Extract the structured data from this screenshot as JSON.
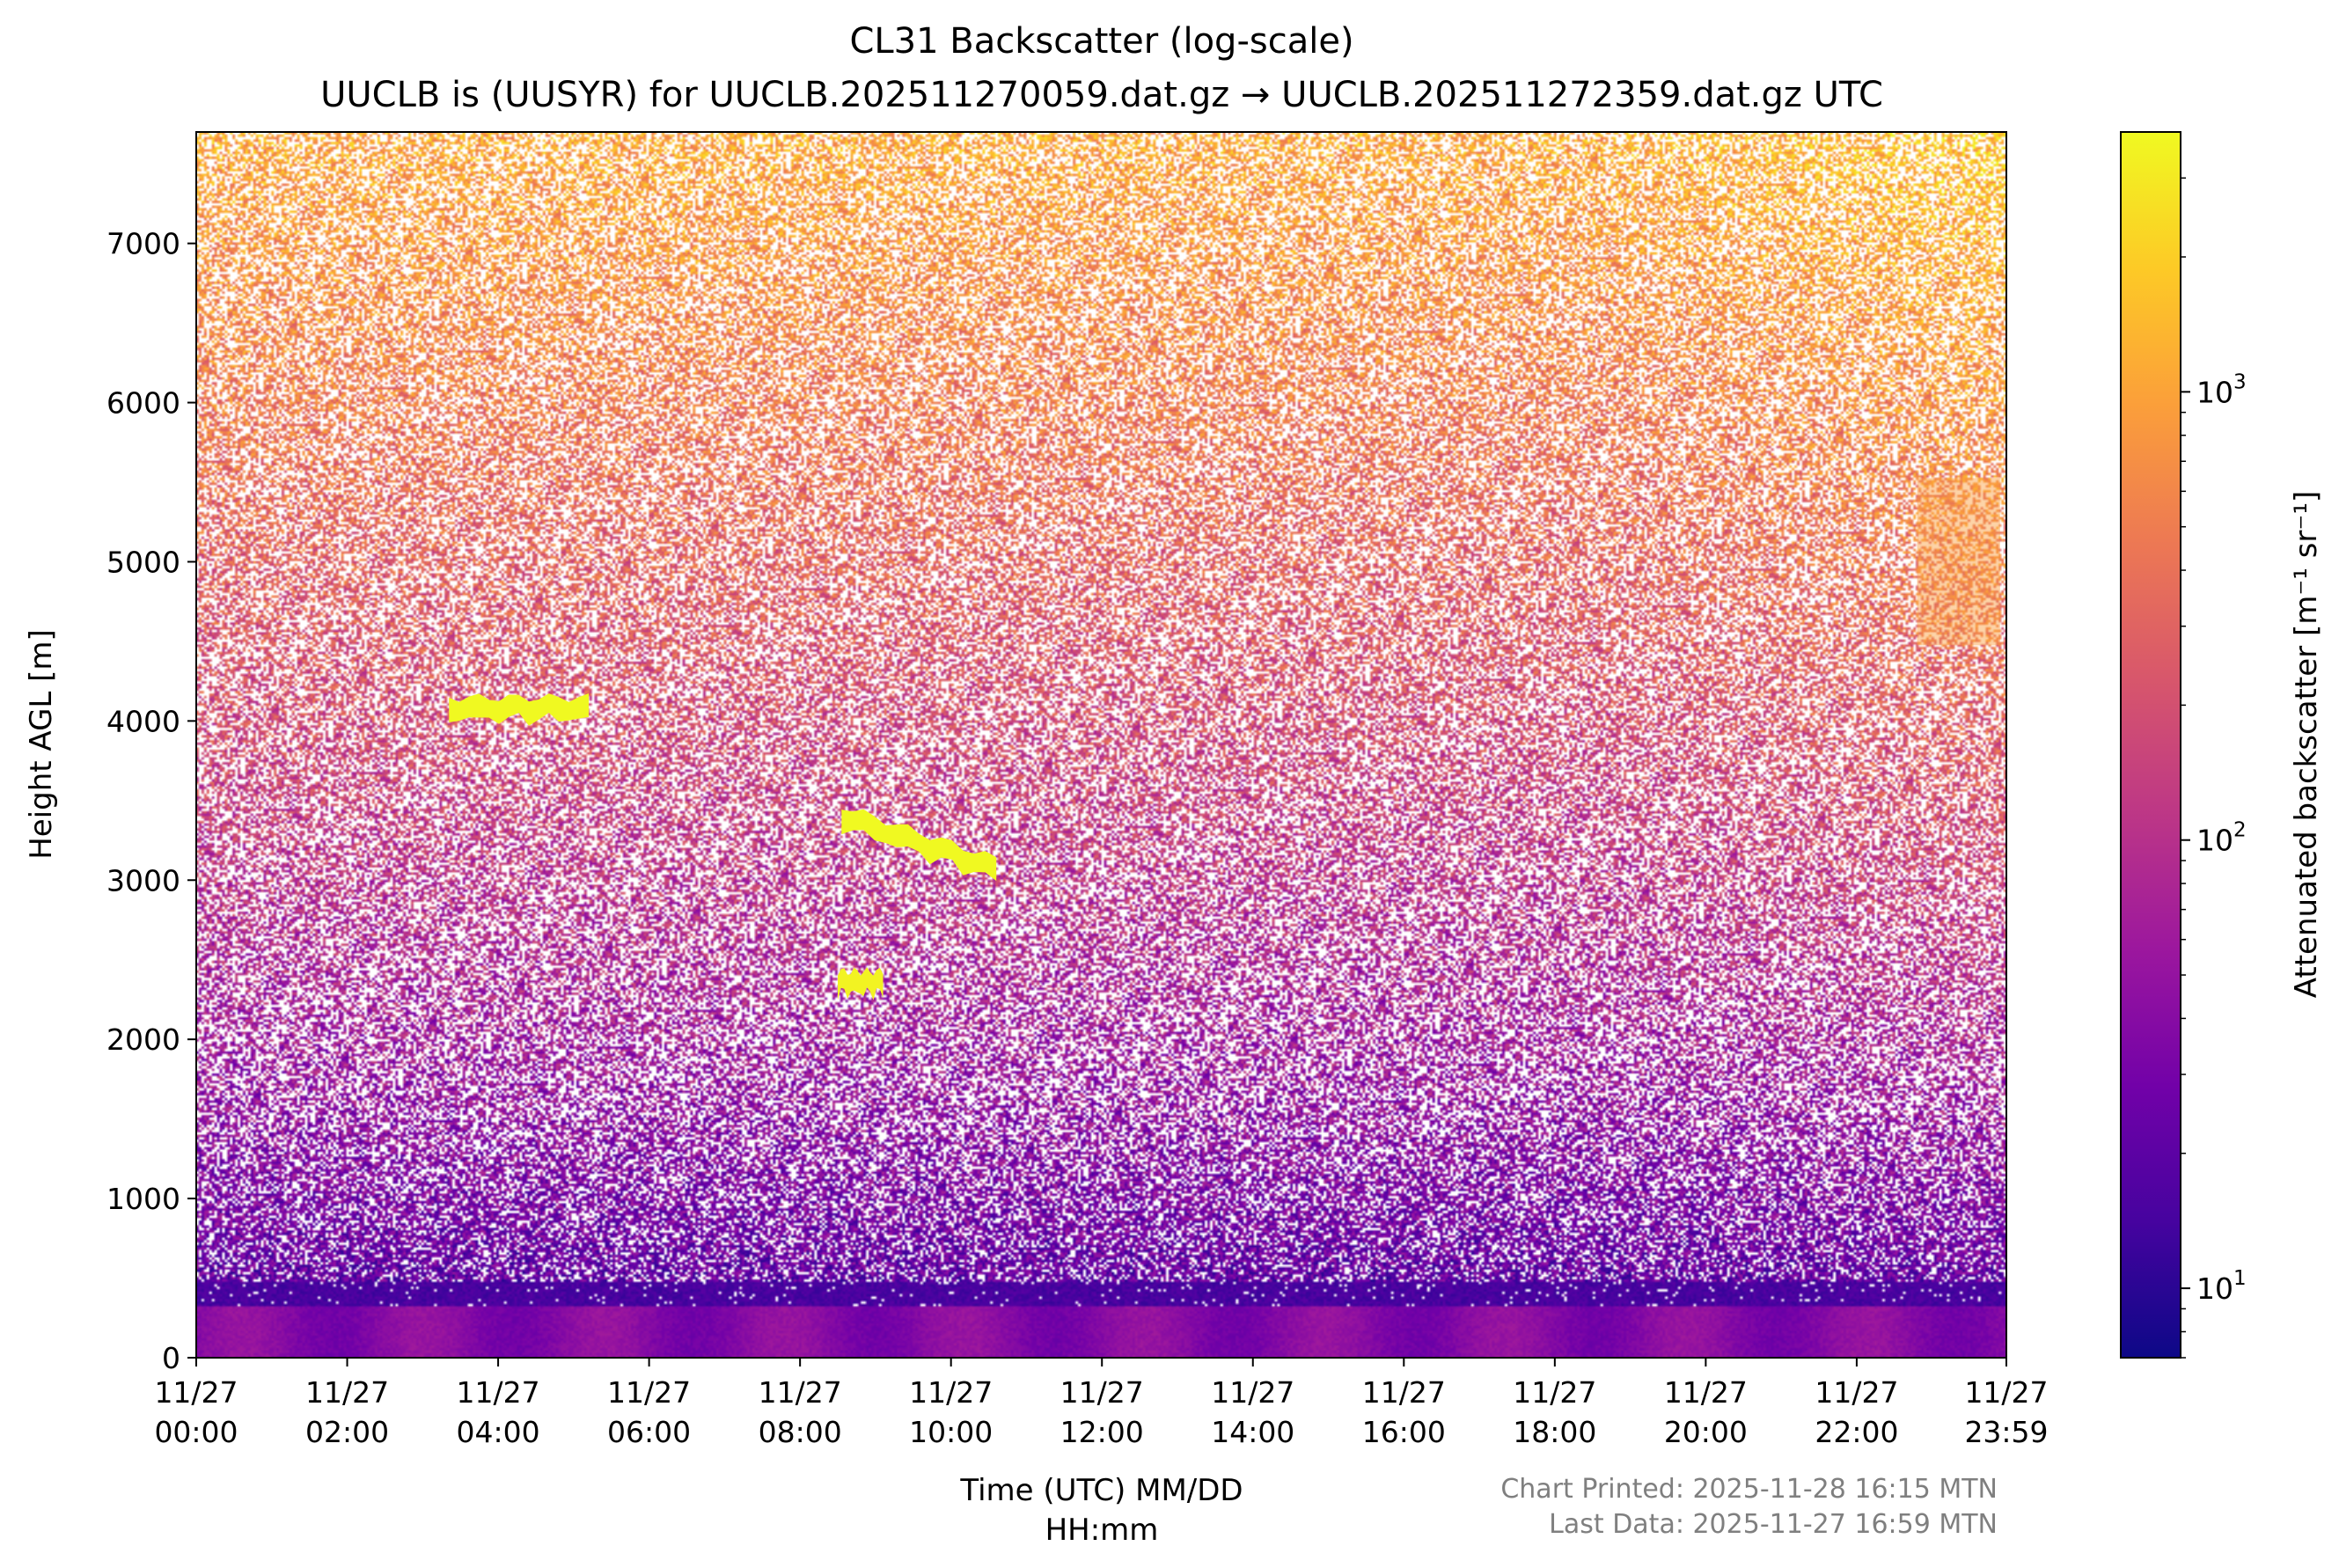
{
  "chart_data": {
    "type": "heatmap",
    "title": "CL31 Backscatter (log-scale)",
    "subtitle": "UUCLB is (UUSYR) for UUCLB.202511270059.dat.gz → UUCLB.202511272359.dat.gz UTC",
    "xlabel_line1": "Time (UTC) MM/DD",
    "xlabel_line2": "HH:mm",
    "ylabel": "Height AGL [m]",
    "x_ticks": [
      {
        "hour": 0,
        "date": "11/27",
        "time": "00:00"
      },
      {
        "hour": 2,
        "date": "11/27",
        "time": "02:00"
      },
      {
        "hour": 4,
        "date": "11/27",
        "time": "04:00"
      },
      {
        "hour": 6,
        "date": "11/27",
        "time": "06:00"
      },
      {
        "hour": 8,
        "date": "11/27",
        "time": "08:00"
      },
      {
        "hour": 10,
        "date": "11/27",
        "time": "10:00"
      },
      {
        "hour": 12,
        "date": "11/27",
        "time": "12:00"
      },
      {
        "hour": 14,
        "date": "11/27",
        "time": "14:00"
      },
      {
        "hour": 16,
        "date": "11/27",
        "time": "16:00"
      },
      {
        "hour": 18,
        "date": "11/27",
        "time": "18:00"
      },
      {
        "hour": 20,
        "date": "11/27",
        "time": "20:00"
      },
      {
        "hour": 22,
        "date": "11/27",
        "time": "22:00"
      },
      {
        "hour": 23.983,
        "date": "11/27",
        "time": "23:59"
      }
    ],
    "xlim_hours": [
      0,
      23.983
    ],
    "y_ticks": [
      0,
      1000,
      2000,
      3000,
      4000,
      5000,
      6000,
      7000
    ],
    "ylim": [
      0,
      7700
    ],
    "colorbar": {
      "label": "Attenuated backscatter [m⁻¹ sr⁻¹]",
      "scale": "log",
      "colormap": "plasma",
      "range": [
        7,
        3800
      ],
      "major_ticks": [
        {
          "value": 10,
          "base": "10",
          "exp": "1"
        },
        {
          "value": 100,
          "base": "10",
          "exp": "2"
        },
        {
          "value": 1000,
          "base": "10",
          "exp": "3"
        }
      ],
      "minor_ticks": [
        7,
        8,
        9,
        20,
        30,
        40,
        50,
        60,
        70,
        80,
        90,
        200,
        300,
        400,
        500,
        600,
        700,
        800,
        900,
        2000,
        3000
      ]
    },
    "features": [
      {
        "kind": "cloud_layer",
        "start_hour": 3.35,
        "end_hour": 5.2,
        "height_m": 4080,
        "backscatter": 3800
      },
      {
        "kind": "cloud_layer",
        "start_hour": 8.55,
        "end_hour": 10.6,
        "height_m": 3400,
        "backscatter": 3800
      },
      {
        "kind": "cloud_fragment",
        "start_hour": 8.5,
        "end_hour": 9.1,
        "height_m": 2360,
        "backscatter": 3500
      },
      {
        "kind": "elevated_plume",
        "start_hour": 22.8,
        "end_hour": 23.9,
        "height_m": 5000,
        "backscatter": 900
      },
      {
        "kind": "surface_layer",
        "start_hour": 0,
        "end_hour": 23.983,
        "height_m": 300,
        "backscatter": 25
      }
    ],
    "grid": false,
    "legend": "none"
  },
  "footer": {
    "printed": "Chart Printed: 2025-11-28 16:15 MTN",
    "last_data": "Last Data: 2025-11-27 16:59 MTN"
  },
  "colors": {
    "cmap_stops": [
      "#0d0887",
      "#46039f",
      "#7201a8",
      "#9c179e",
      "#bd3786",
      "#d8576b",
      "#ed7953",
      "#fb9f3a",
      "#fdca26",
      "#f0f921"
    ]
  }
}
